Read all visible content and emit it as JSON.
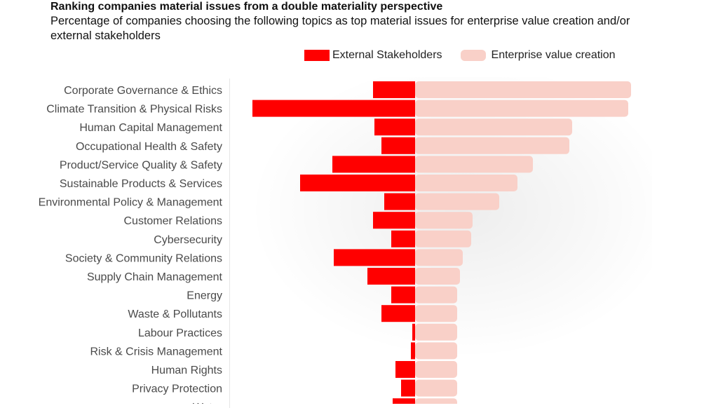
{
  "title": "Ranking companies material issues from a double materiality perspective",
  "subtitle": "Percentage of companies choosing the following topics as top material issues for enterprise value creation and/or external stakeholders",
  "chart_data": {
    "type": "bar",
    "orientation": "horizontal-diverging",
    "legend_placement": "top-right",
    "grid": false,
    "categories": [
      [
        "Corporate Governance & Ethics"
      ],
      [
        "Climate Transition & Physical",
        "Risks"
      ],
      [
        "Human Capital Management"
      ],
      [
        "Occupational Health & Safety"
      ],
      [
        "Product/Service Quality & Safety"
      ],
      [
        "Sustainable Products & Services"
      ],
      [
        "Environmental Policy &",
        "Management"
      ],
      [
        "Customer Relations"
      ],
      [
        "Cybersecurity"
      ],
      [
        "Society & Community Relations"
      ],
      [
        "Supply Chain Management"
      ],
      [
        "Energy"
      ],
      [
        "Waste & Pollutants"
      ],
      [
        "Labour Practices"
      ],
      [
        "Risk & Crisis Management"
      ],
      [
        "Human Rights"
      ],
      [
        "Privacy Protection"
      ],
      [
        "Water"
      ]
    ],
    "series": [
      {
        "name": "External Stakeholders",
        "color": "#ff0000",
        "direction": "left",
        "values": [
          15,
          58,
          14.5,
          12,
          29.5,
          41,
          11,
          15,
          8.5,
          29,
          17,
          8.5,
          12,
          1,
          1.5,
          7,
          5,
          8
        ]
      },
      {
        "name": "Enterprise value creation",
        "color": "#f9d0c8",
        "direction": "right",
        "values": [
          77,
          76,
          56,
          55,
          42,
          36.5,
          30,
          20.5,
          20,
          17,
          16,
          15,
          15,
          15,
          15,
          15,
          15,
          15
        ]
      }
    ]
  }
}
